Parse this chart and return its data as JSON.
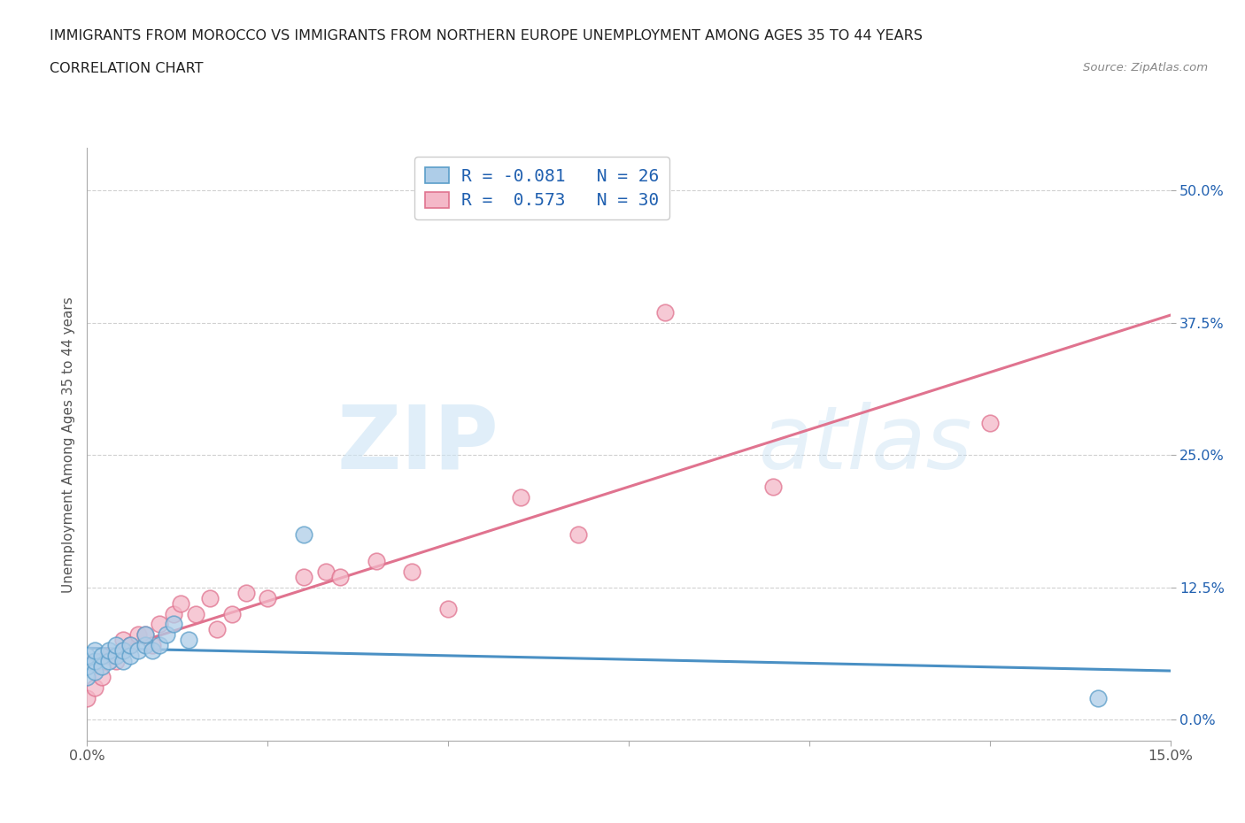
{
  "title_line1": "IMMIGRANTS FROM MOROCCO VS IMMIGRANTS FROM NORTHERN EUROPE UNEMPLOYMENT AMONG AGES 35 TO 44 YEARS",
  "title_line2": "CORRELATION CHART",
  "source_text": "Source: ZipAtlas.com",
  "ylabel": "Unemployment Among Ages 35 to 44 years",
  "xlim": [
    0.0,
    0.15
  ],
  "ylim": [
    -0.02,
    0.54
  ],
  "yticks": [
    0.0,
    0.125,
    0.25,
    0.375,
    0.5
  ],
  "ytick_labels": [
    "0.0%",
    "12.5%",
    "25.0%",
    "37.5%",
    "50.0%"
  ],
  "xticks": [
    0.0,
    0.025,
    0.05,
    0.075,
    0.1,
    0.125,
    0.15
  ],
  "xtick_labels": [
    "0.0%",
    "",
    "",
    "",
    "",
    "",
    "15.0%"
  ],
  "morocco_color": "#aecde8",
  "morocco_edge": "#5b9ec9",
  "northern_color": "#f4b8c8",
  "northern_edge": "#e0738f",
  "regression_morocco_color": "#4a90c4",
  "regression_northern_color": "#e0738f",
  "legend_text_color": "#2060b0",
  "ytick_color": "#2060b0",
  "xtick_color": "#555555",
  "morocco_R": -0.081,
  "morocco_N": 26,
  "northern_R": 0.573,
  "northern_N": 30,
  "watermark_zip": "ZIP",
  "watermark_atlas": "atlas",
  "morocco_x": [
    0.0,
    0.0,
    0.0,
    0.001,
    0.001,
    0.001,
    0.002,
    0.002,
    0.003,
    0.003,
    0.004,
    0.004,
    0.005,
    0.005,
    0.006,
    0.006,
    0.007,
    0.008,
    0.008,
    0.009,
    0.01,
    0.011,
    0.012,
    0.014,
    0.03,
    0.14
  ],
  "morocco_y": [
    0.04,
    0.05,
    0.06,
    0.045,
    0.055,
    0.065,
    0.05,
    0.06,
    0.055,
    0.065,
    0.06,
    0.07,
    0.055,
    0.065,
    0.06,
    0.07,
    0.065,
    0.07,
    0.08,
    0.065,
    0.07,
    0.08,
    0.09,
    0.075,
    0.175,
    0.02
  ],
  "northern_x": [
    0.0,
    0.001,
    0.002,
    0.003,
    0.004,
    0.005,
    0.006,
    0.007,
    0.008,
    0.009,
    0.01,
    0.012,
    0.013,
    0.015,
    0.017,
    0.018,
    0.02,
    0.022,
    0.025,
    0.03,
    0.033,
    0.035,
    0.04,
    0.045,
    0.05,
    0.06,
    0.068,
    0.08,
    0.095,
    0.125
  ],
  "northern_y": [
    0.02,
    0.03,
    0.04,
    0.06,
    0.055,
    0.075,
    0.07,
    0.08,
    0.08,
    0.07,
    0.09,
    0.1,
    0.11,
    0.1,
    0.115,
    0.085,
    0.1,
    0.12,
    0.115,
    0.135,
    0.14,
    0.135,
    0.15,
    0.14,
    0.105,
    0.21,
    0.175,
    0.385,
    0.22,
    0.28
  ]
}
